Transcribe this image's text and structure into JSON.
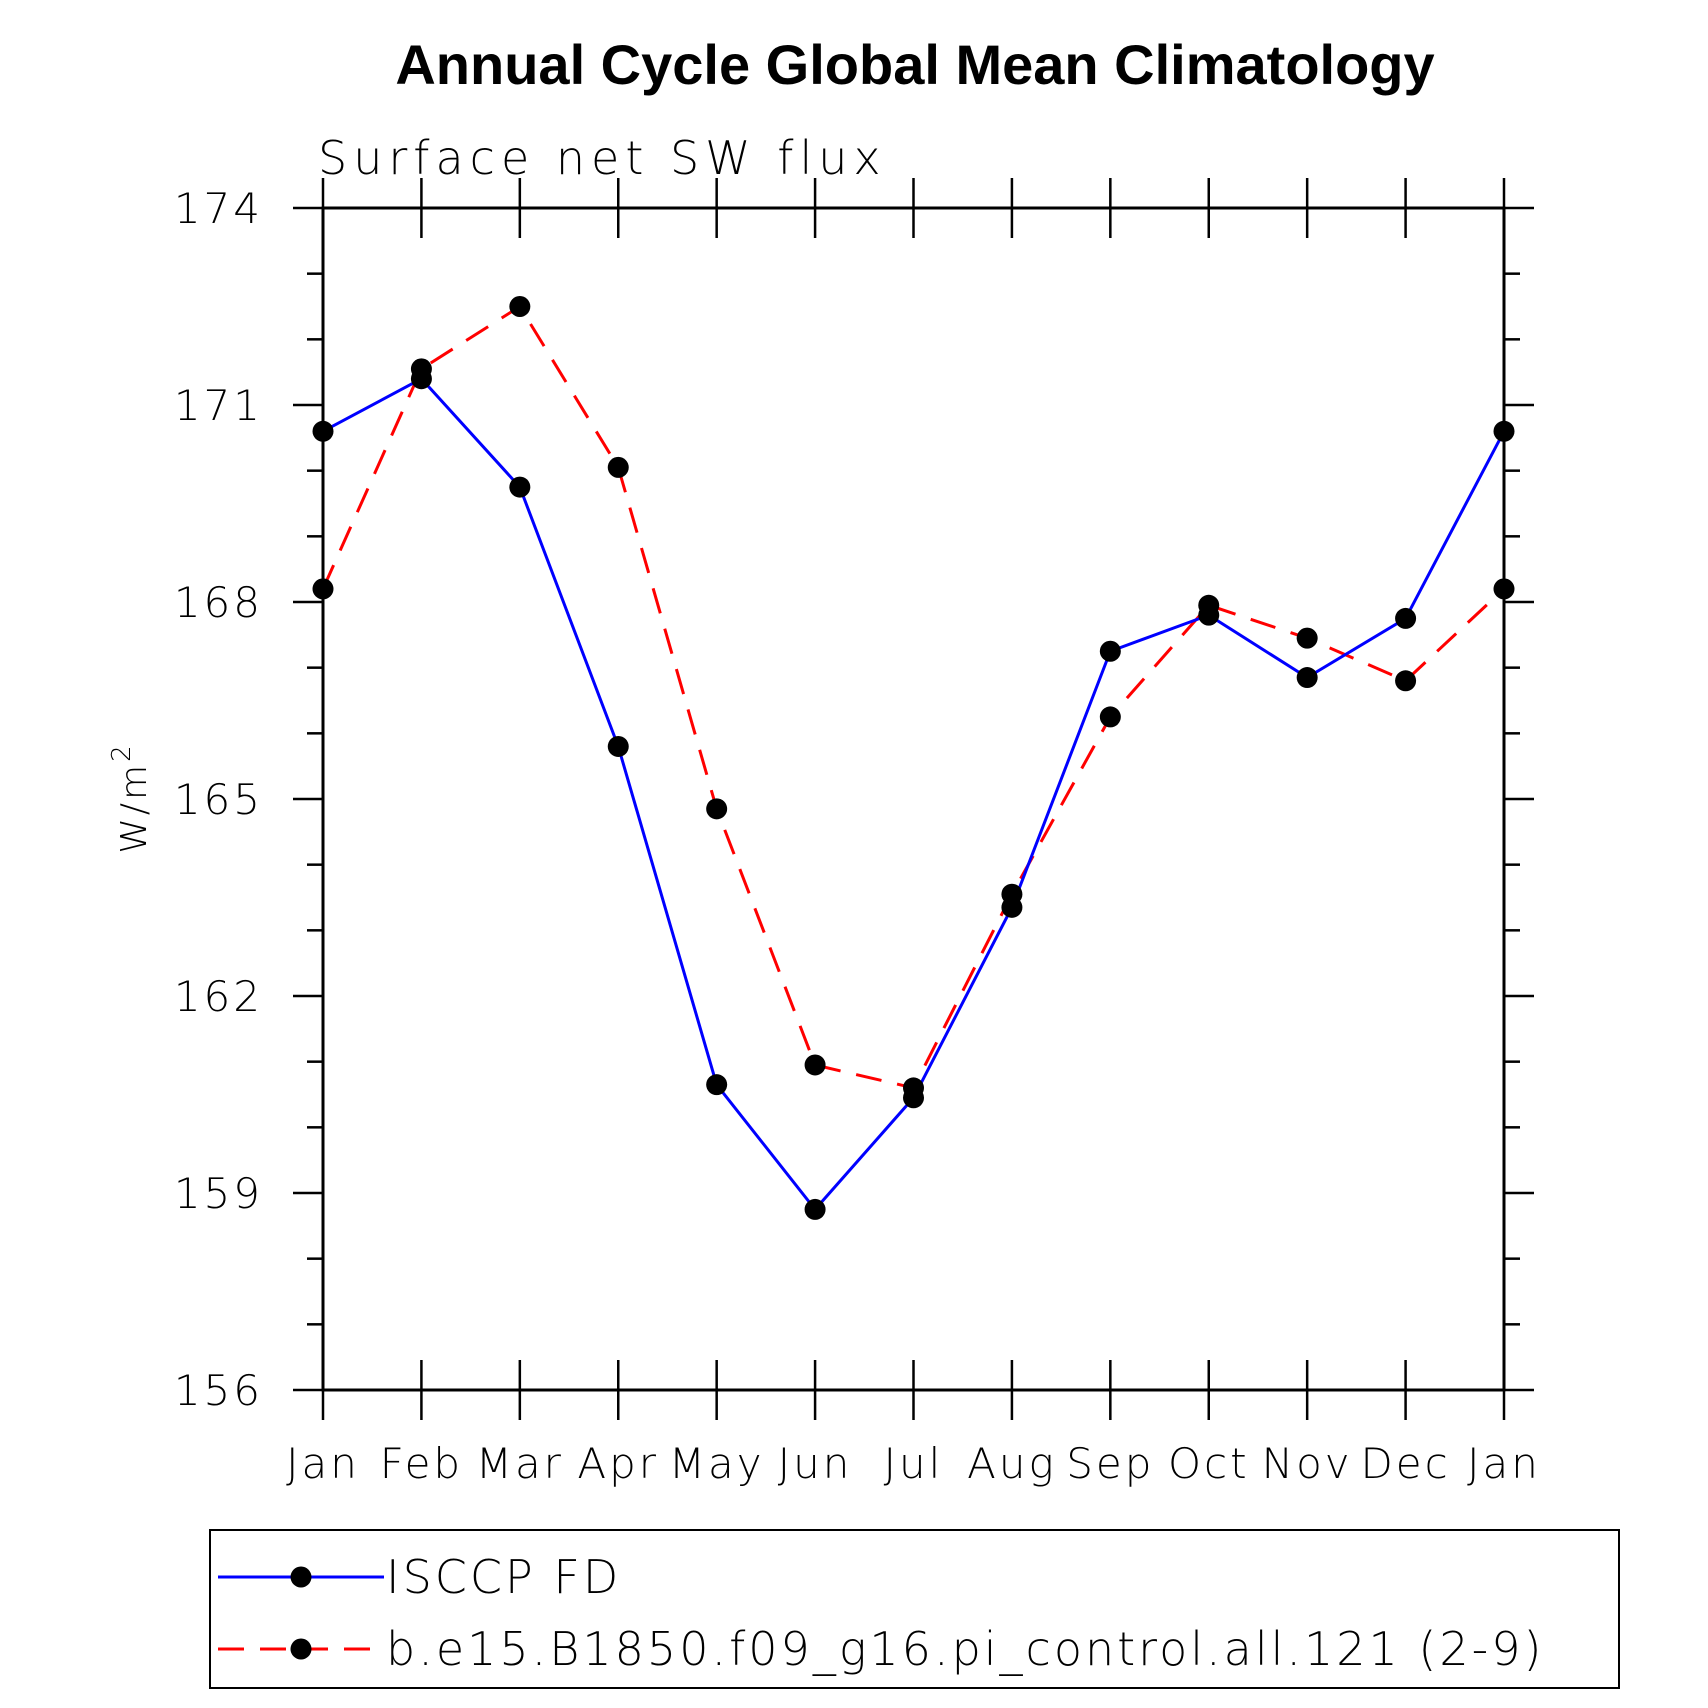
{
  "chart_data": {
    "type": "line",
    "title": "Annual Cycle Global Mean Climatology",
    "subtitle": "Surface net SW flux",
    "ylabel": "W/m",
    "ylabel_superscript": "2",
    "xlabel": "",
    "categories": [
      "Jan",
      "Feb",
      "Mar",
      "Apr",
      "May",
      "Jun",
      "Jul",
      "Aug",
      "Sep",
      "Oct",
      "Nov",
      "Dec",
      "Jan"
    ],
    "ylim": [
      156,
      174
    ],
    "yticks": [
      "156",
      "159",
      "162",
      "165",
      "168",
      "171",
      "174"
    ],
    "grid": false,
    "legend_position": "bottom",
    "series": [
      {
        "name": "ISCCP FD",
        "color": "#0000ff",
        "dash": "solid",
        "marker": "circle",
        "values": [
          170.6,
          171.4,
          169.75,
          165.8,
          160.65,
          158.75,
          160.45,
          163.35,
          167.25,
          167.8,
          166.85,
          167.75,
          170.6
        ]
      },
      {
        "name": "b.e15.B1850.f09_g16.pi_control.all.121 (2-9)",
        "color": "#ff0000",
        "dash": "dashed",
        "marker": "circle",
        "values": [
          168.2,
          171.55,
          172.5,
          170.05,
          164.85,
          160.95,
          160.6,
          163.55,
          166.25,
          167.95,
          167.45,
          166.8,
          168.2
        ]
      }
    ]
  }
}
